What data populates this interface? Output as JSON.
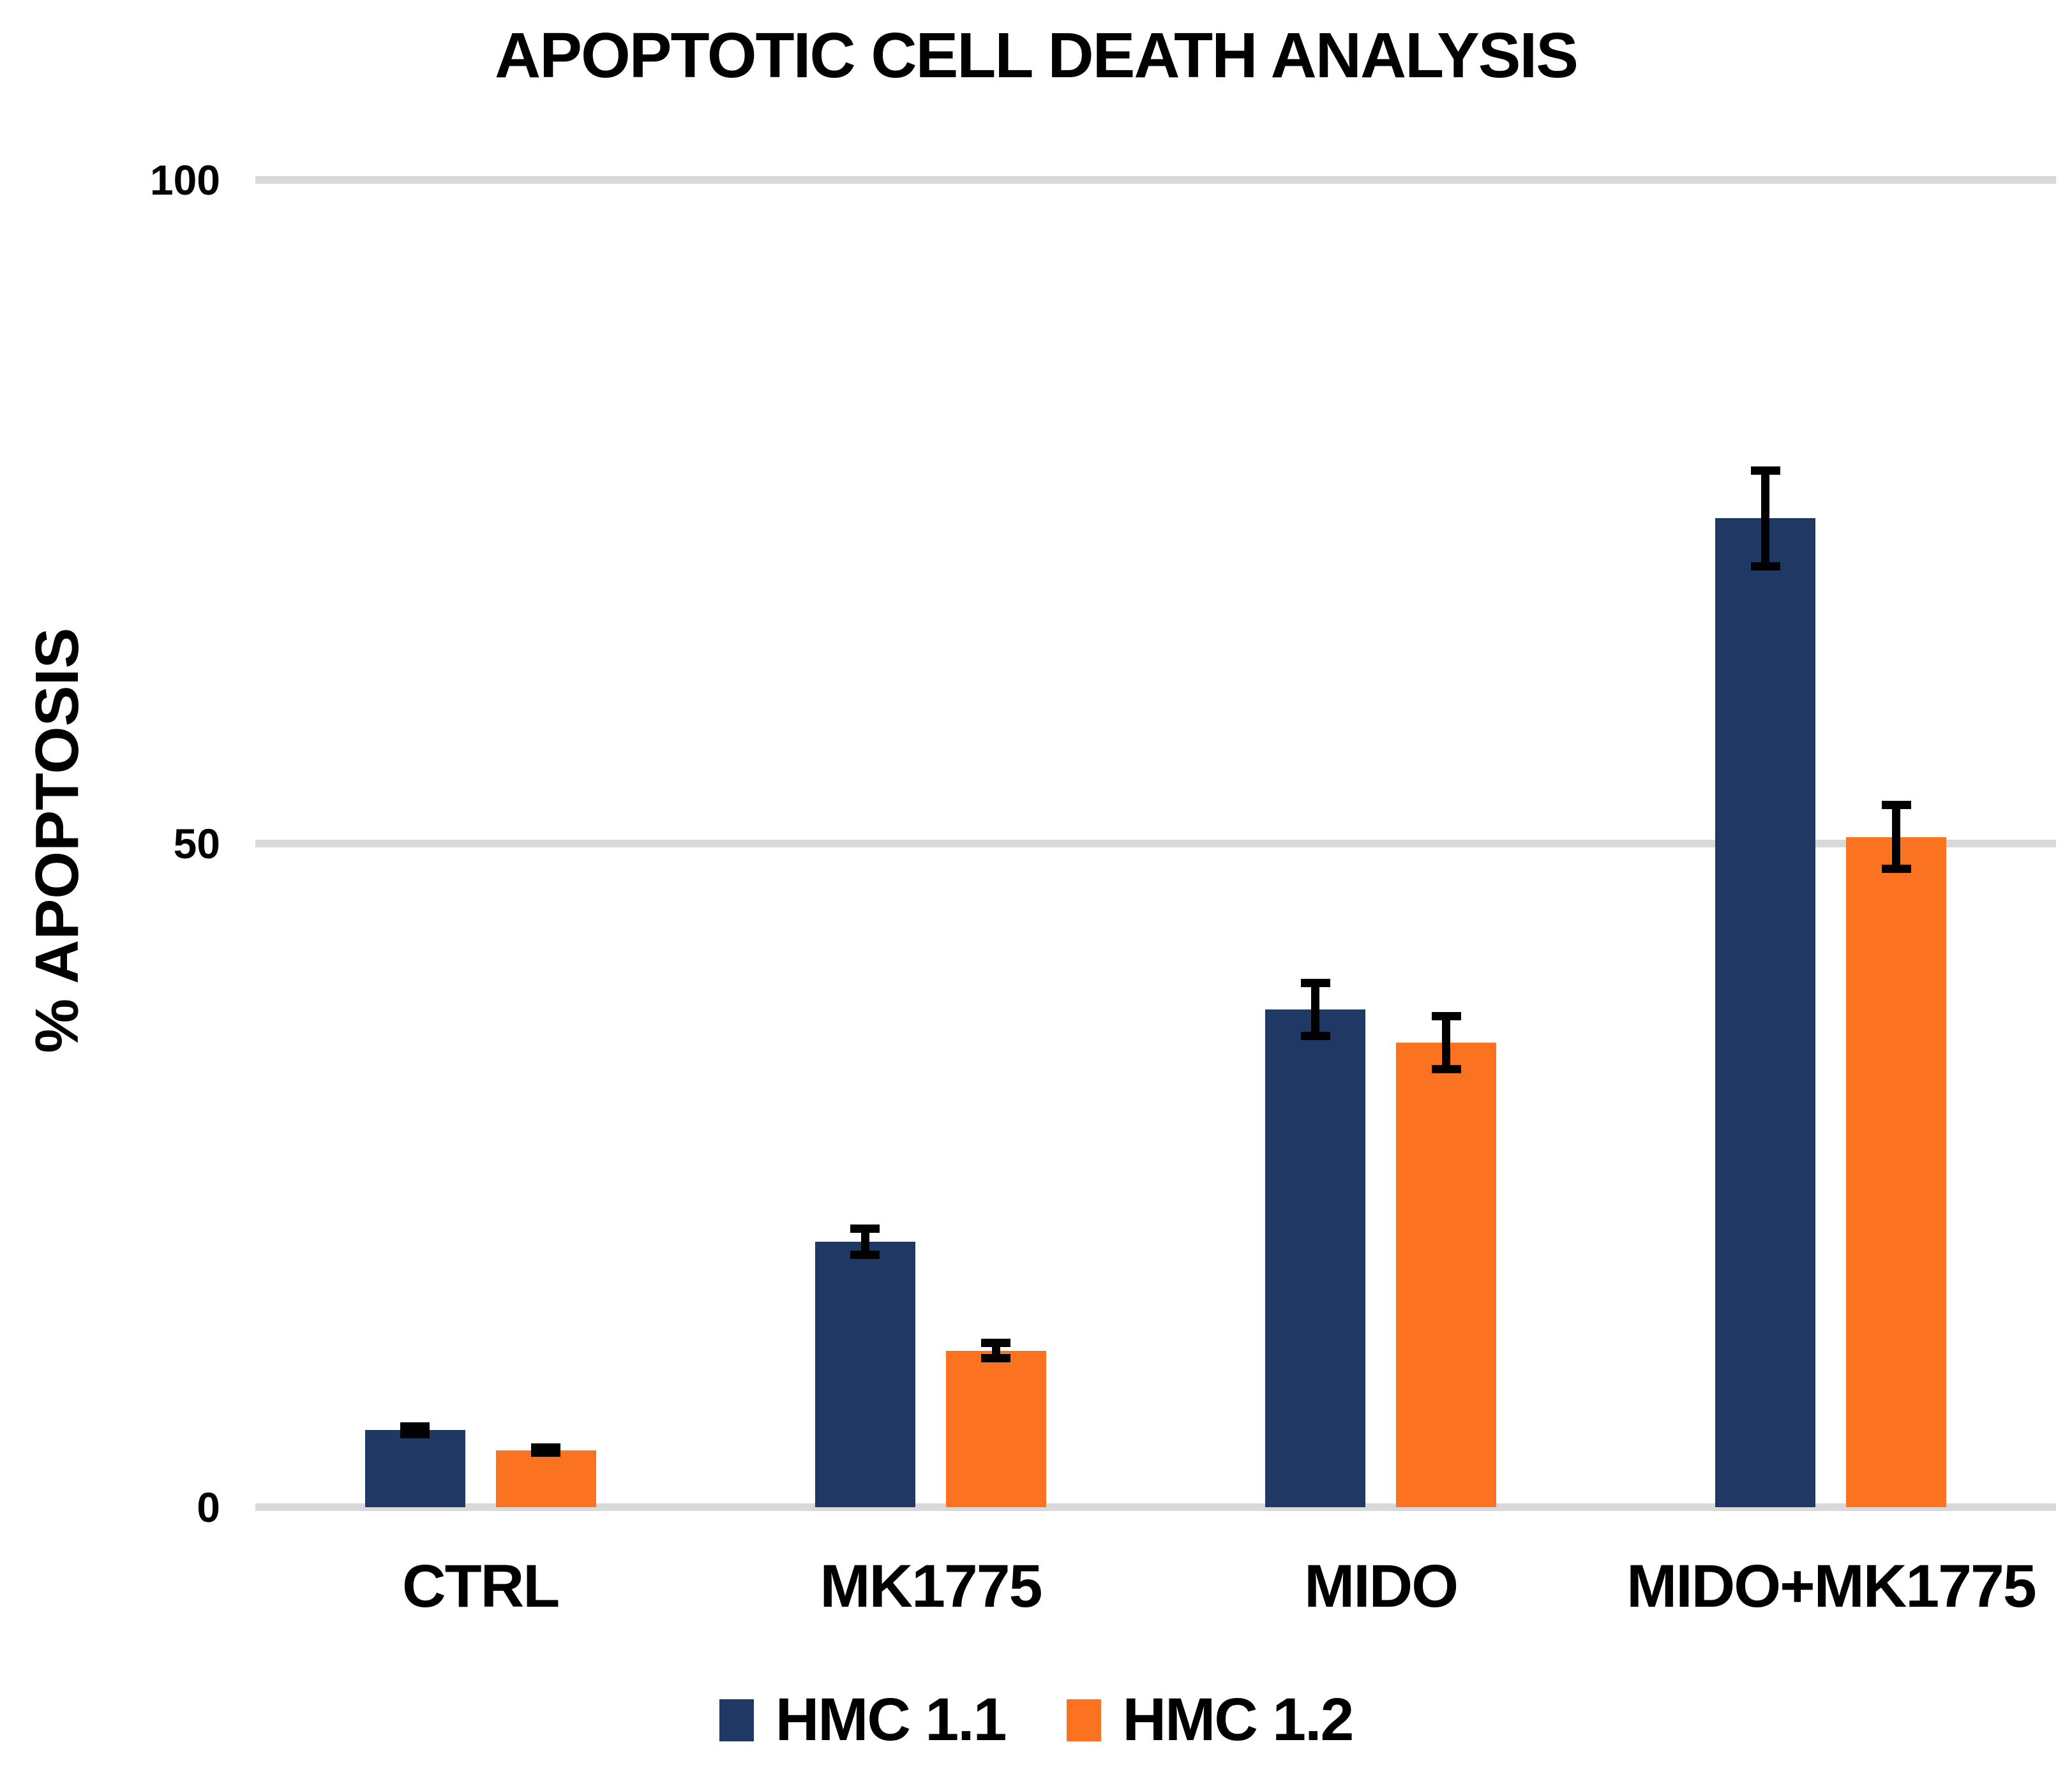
{
  "chart_data": {
    "type": "bar",
    "title": "APOPTOTIC CELL DEATH ANALYSIS",
    "ylabel": "% APOPTOSIS",
    "xlabel": "",
    "categories": [
      "CTRL",
      "MK1775",
      "MIDO",
      "MIDO+MK1775"
    ],
    "series": [
      {
        "name": "HMC 1.1",
        "color": "#1F3864",
        "values": [
          5.8,
          20.0,
          37.5,
          74.5
        ],
        "errors": [
          0.6,
          1.3,
          2.3,
          3.9
        ]
      },
      {
        "name": "HMC 1.2",
        "color": "#FB7220",
        "values": [
          4.3,
          11.8,
          35.0,
          50.5
        ],
        "errors": [
          0.5,
          0.9,
          2.3,
          2.7
        ]
      }
    ],
    "ylim": [
      0,
      100
    ],
    "yticks": [
      100,
      50,
      0
    ],
    "grid": "horizontal-major-only",
    "gridline_color": "#D9D9D9",
    "error_bar_color": "#000000",
    "legend_position": "bottom",
    "background_color": "#FFFFFF"
  }
}
